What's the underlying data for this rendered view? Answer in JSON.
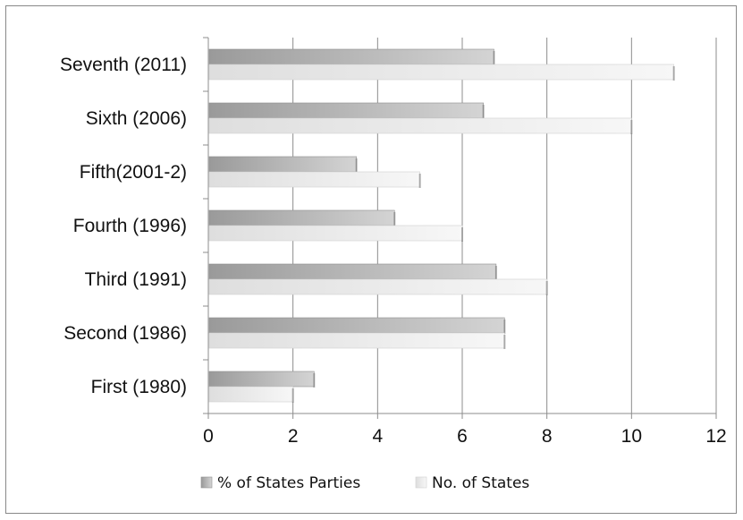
{
  "chart_data": {
    "type": "bar",
    "orientation": "horizontal",
    "categories": [
      "First (1980)",
      "Second (1986)",
      "Third (1991)",
      "Fourth (1996)",
      "Fifth(2001-2)",
      "Sixth (2006)",
      "Seventh (2011)"
    ],
    "series": [
      {
        "name": "% of States Parties",
        "values": [
          2.5,
          7.0,
          6.8,
          4.4,
          3.5,
          6.5,
          6.75
        ]
      },
      {
        "name": "No. of States",
        "values": [
          2,
          7,
          8,
          6,
          5,
          10,
          11
        ]
      }
    ],
    "xlim": [
      0,
      12
    ],
    "xticks": [
      "0",
      "2",
      "4",
      "6",
      "8",
      "10",
      "12"
    ],
    "grid": "vertical",
    "legend_position": "bottom",
    "colors": {
      "series1": "#a8a8a8",
      "series2": "#ededed",
      "grid": "#8c8c8c",
      "axis": "#8c8c8c"
    }
  }
}
